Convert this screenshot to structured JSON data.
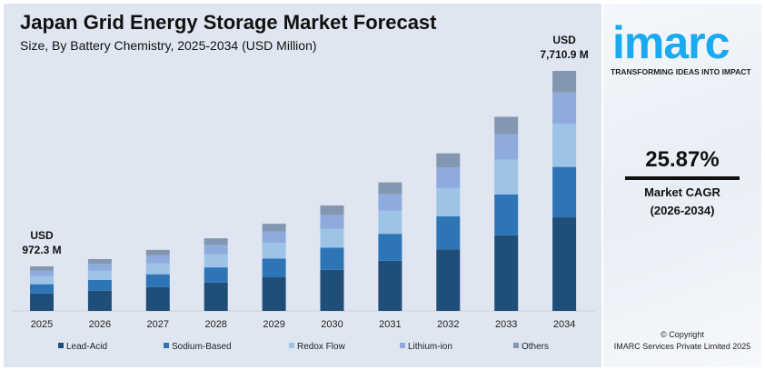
{
  "chart_data": {
    "type": "bar",
    "stacked": true,
    "title": "Japan Grid Energy Storage Market Forecast",
    "subtitle": "Size, By Battery Chemistry, 2025-2034 (USD Million)",
    "categories": [
      "2025",
      "2026",
      "2027",
      "2028",
      "2029",
      "2030",
      "2031",
      "2032",
      "2033",
      "2034"
    ],
    "totals": [
      972.3,
      1224,
      1541,
      1939,
      2441,
      3073,
      3868,
      4869,
      6129,
      7710.9
    ],
    "series": [
      {
        "name": "Lead-Acid",
        "color": "#1f4e79",
        "values": [
          379,
          477,
          601,
          756,
          952,
          1198,
          1509,
          1899,
          2390,
          3007
        ]
      },
      {
        "name": "Sodium-Based",
        "color": "#2e75b6",
        "values": [
          204,
          257,
          324,
          407,
          513,
          645,
          812,
          1022,
          1287,
          1619
        ]
      },
      {
        "name": "Redox Flow",
        "color": "#9dc3e6",
        "values": [
          175,
          220,
          277,
          349,
          439,
          553,
          696,
          876,
          1103,
          1388
        ]
      },
      {
        "name": "Lithium-ion",
        "color": "#8faadc",
        "values": [
          126,
          159,
          200,
          252,
          317,
          400,
          503,
          633,
          797,
          1002
        ]
      },
      {
        "name": "Others",
        "color": "#8497b0",
        "values": [
          88,
          111,
          139,
          175,
          220,
          277,
          348,
          439,
          552,
          695
        ]
      }
    ],
    "annotations": [
      {
        "category": "2025",
        "lines": [
          "USD",
          "972.3 M"
        ]
      },
      {
        "category": "2034",
        "lines": [
          "USD",
          "7,710.9 M"
        ]
      }
    ],
    "legend_position": "bottom",
    "grid": false
  },
  "side": {
    "logo": "imarc",
    "tagline": "TRANSFORMING IDEAS INTO IMPACT",
    "cagr_value": "25.87%",
    "cagr_label": "Market CAGR",
    "cagr_period": "(2026-2034)",
    "copyright": "© Copyright",
    "company": "IMARC Services Private Limited 2025"
  }
}
